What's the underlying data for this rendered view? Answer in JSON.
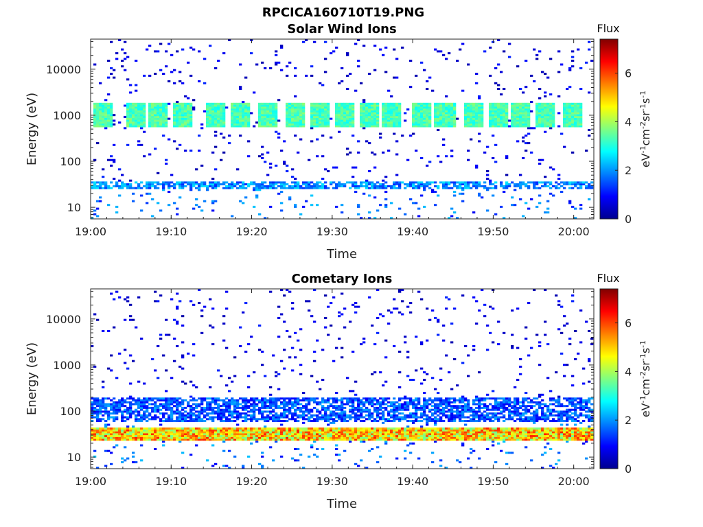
{
  "figure": {
    "title": "RPCICA160710T19.PNG"
  },
  "colors": {
    "colormap": [
      "#00008f",
      "#0000ff",
      "#0080ff",
      "#00ffff",
      "#80ff80",
      "#ffff00",
      "#ff8000",
      "#ff0000",
      "#800000"
    ],
    "frame": "#222222",
    "background": "#ffffff"
  },
  "chart_data": [
    {
      "type": "heatmap",
      "title": "Solar Wind Ions",
      "xlabel": "Time",
      "ylabel": "Energy (eV)",
      "x_ticks": [
        "19:00",
        "19:10",
        "19:20",
        "19:30",
        "19:40",
        "19:50",
        "20:00"
      ],
      "x_tick_minutes": [
        0,
        10,
        20,
        30,
        40,
        50,
        60
      ],
      "xlim_minutes": [
        0,
        62.5
      ],
      "y_scale": "log",
      "ylim": [
        5.6,
        45000
      ],
      "y_ticks": [
        10,
        100,
        1000,
        10000
      ],
      "y_tick_labels": [
        "10",
        "100",
        "1000",
        "10000"
      ],
      "colorbar": {
        "label": "Flux",
        "units": "eV",
        "units_parts": {
          "a": "eV",
          "a_sup": "-1",
          "b": "cm",
          "b_sup": "-2",
          "c": "sr",
          "c_sup": "-1",
          "d": "s",
          "d_sup": "-1"
        },
        "ticks": [
          0,
          2,
          4,
          6
        ],
        "tick_labels": [
          "0",
          "2",
          "4",
          "6"
        ],
        "range": [
          0,
          7.4
        ]
      },
      "profile": {
        "dominant_band_energy": [
          560,
          1800
        ],
        "dominant_band_level": [
          2.8,
          3.8
        ],
        "secondary_band_energy": [
          25,
          38
        ],
        "secondary_band_level": [
          1.2,
          2.6
        ],
        "bursts_minutes": [
          1.5,
          5.5,
          8.5,
          11.5,
          15.5,
          18.5,
          22,
          25.5,
          28.5,
          31.5,
          34.5,
          37.5,
          41,
          44,
          47.5,
          50.5,
          53.5,
          56.5,
          60
        ]
      }
    },
    {
      "type": "heatmap",
      "title": "Cometary Ions",
      "xlabel": "Time",
      "ylabel": "Energy (eV)",
      "x_ticks": [
        "19:00",
        "19:10",
        "19:20",
        "19:30",
        "19:40",
        "19:50",
        "20:00"
      ],
      "x_tick_minutes": [
        0,
        10,
        20,
        30,
        40,
        50,
        60
      ],
      "xlim_minutes": [
        0,
        62.5
      ],
      "y_scale": "log",
      "ylim": [
        5.6,
        45000
      ],
      "y_ticks": [
        10,
        100,
        1000,
        10000
      ],
      "y_tick_labels": [
        "10",
        "100",
        "1000",
        "10000"
      ],
      "colorbar": {
        "label": "Flux",
        "units": "eV",
        "units_parts": {
          "a": "eV",
          "a_sup": "-1",
          "b": "cm",
          "b_sup": "-2",
          "c": "sr",
          "c_sup": "-1",
          "d": "s",
          "d_sup": "-1"
        },
        "ticks": [
          0,
          2,
          4,
          6
        ],
        "tick_labels": [
          "0",
          "2",
          "4",
          "6"
        ],
        "range": [
          0,
          7.4
        ]
      },
      "profile": {
        "dominant_band_energy": [
          22,
          45
        ],
        "dominant_band_level": [
          3.5,
          6.3
        ],
        "secondary_band_energy": [
          60,
          200
        ],
        "secondary_band_level": [
          0.8,
          2.2
        ]
      }
    }
  ]
}
